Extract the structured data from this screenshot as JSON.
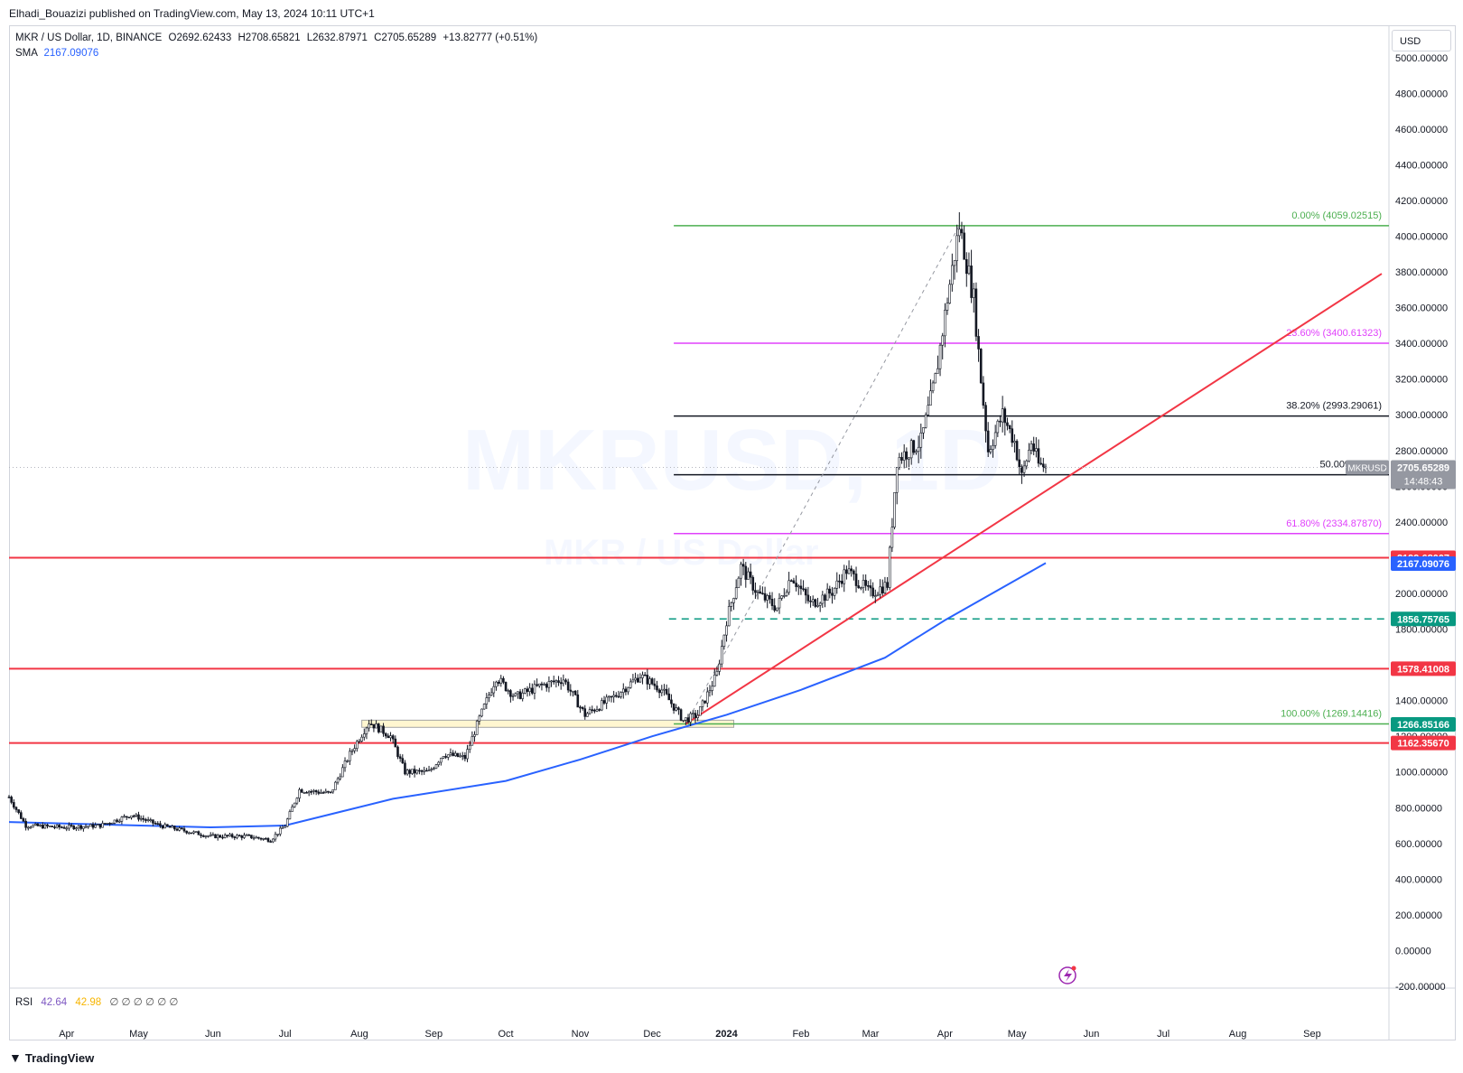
{
  "header": {
    "publisher_line": "Elhadi_Bouazizi published on TradingView.com, May 13, 2024 10:11 UTC+1"
  },
  "legend": {
    "symbol": "MKR / US Dollar, 1D, BINANCE",
    "open": "O2692.62433",
    "high": "H2708.65821",
    "low": "L2632.87971",
    "close": "C2705.65289",
    "change": "+13.82777 (+0.51%)",
    "sma_label": "SMA",
    "sma_value": "2167.09076"
  },
  "rsi": {
    "label": "RSI",
    "value1": "42.64",
    "value2": "42.98",
    "extra": "∅ ∅ ∅ ∅ ∅ ∅"
  },
  "currency_button": "USD",
  "watermark": {
    "ticker": "MKRUSD, 1D",
    "name": "MKR / US Dollar"
  },
  "footer": {
    "brand": "TradingView",
    "logo_icon": "tradingview-logo-icon"
  },
  "chart_data": {
    "type": "candlestick",
    "symbol": "MKRUSD",
    "ylim": [
      -200,
      5100
    ],
    "y_ticks": [
      "5000.00000",
      "4800.00000",
      "4600.00000",
      "4400.00000",
      "4200.00000",
      "4000.00000",
      "3800.00000",
      "3600.00000",
      "3400.00000",
      "3200.00000",
      "3000.00000",
      "2800.00000",
      "2600.00000",
      "2400.00000",
      "2200.00000",
      "2000.00000",
      "1800.00000",
      "1600.00000",
      "1400.00000",
      "1200.00000",
      "1000.00000",
      "800.00000",
      "600.00000",
      "400.00000",
      "200.00000",
      "0.00000",
      "-200.00000"
    ],
    "x_ticks": [
      "Apr",
      "May",
      "Jun",
      "Jul",
      "Aug",
      "Sep",
      "Oct",
      "Nov",
      "Dec",
      "2024",
      "Feb",
      "Mar",
      "Apr",
      "May",
      "Jun",
      "Jul",
      "Aug",
      "Sep"
    ],
    "x_range": [
      "2023-03-08",
      "2024-09-30"
    ],
    "price_path": [
      [
        "2023-03-08",
        860
      ],
      [
        "2023-03-15",
        700
      ],
      [
        "2023-03-31",
        690
      ],
      [
        "2023-04-15",
        700
      ],
      [
        "2023-04-28",
        760
      ],
      [
        "2023-05-10",
        700
      ],
      [
        "2023-05-31",
        640
      ],
      [
        "2023-06-15",
        640
      ],
      [
        "2023-06-25",
        620
      ],
      [
        "2023-07-01",
        700
      ],
      [
        "2023-07-07",
        900
      ],
      [
        "2023-07-20",
        880
      ],
      [
        "2023-07-28",
        1100
      ],
      [
        "2023-08-05",
        1280
      ],
      [
        "2023-08-14",
        1200
      ],
      [
        "2023-08-20",
        1000
      ],
      [
        "2023-08-30",
        1000
      ],
      [
        "2023-09-05",
        1100
      ],
      [
        "2023-09-14",
        1080
      ],
      [
        "2023-09-20",
        1300
      ],
      [
        "2023-09-27",
        1530
      ],
      [
        "2023-10-05",
        1420
      ],
      [
        "2023-10-15",
        1480
      ],
      [
        "2023-10-25",
        1520
      ],
      [
        "2023-11-03",
        1320
      ],
      [
        "2023-11-15",
        1420
      ],
      [
        "2023-11-26",
        1540
      ],
      [
        "2023-12-05",
        1460
      ],
      [
        "2023-12-14",
        1290
      ],
      [
        "2023-12-20",
        1320
      ],
      [
        "2023-12-28",
        1550
      ],
      [
        "2024-01-01",
        1850
      ],
      [
        "2024-01-07",
        2150
      ],
      [
        "2024-01-14",
        2000
      ],
      [
        "2024-01-22",
        1920
      ],
      [
        "2024-01-28",
        2100
      ],
      [
        "2024-02-05",
        1940
      ],
      [
        "2024-02-14",
        2010
      ],
      [
        "2024-02-20",
        2130
      ],
      [
        "2024-03-01",
        2000
      ],
      [
        "2024-03-08",
        2050
      ],
      [
        "2024-03-12",
        2750
      ],
      [
        "2024-03-22",
        2850
      ],
      [
        "2024-03-28",
        3200
      ],
      [
        "2024-04-02",
        3650
      ],
      [
        "2024-04-07",
        4059
      ],
      [
        "2024-04-13",
        3650
      ],
      [
        "2024-04-16",
        3200
      ],
      [
        "2024-04-19",
        2800
      ],
      [
        "2024-04-25",
        3000
      ],
      [
        "2024-04-30",
        2850
      ],
      [
        "2024-05-03",
        2650
      ],
      [
        "2024-05-07",
        2850
      ],
      [
        "2024-05-10",
        2720
      ],
      [
        "2024-05-13",
        2705
      ]
    ],
    "sma": {
      "name": "SMA",
      "value": 2167.09076,
      "points": [
        [
          "2023-03-08",
          720
        ],
        [
          "2023-05-31",
          690
        ],
        [
          "2023-07-01",
          700
        ],
        [
          "2023-08-15",
          850
        ],
        [
          "2023-10-01",
          950
        ],
        [
          "2023-11-01",
          1070
        ],
        [
          "2023-12-01",
          1200
        ],
        [
          "2024-01-01",
          1320
        ],
        [
          "2024-02-01",
          1460
        ],
        [
          "2024-03-07",
          1640
        ],
        [
          "2024-04-01",
          1850
        ],
        [
          "2024-05-13",
          2170
        ]
      ],
      "color": "#2962ff"
    },
    "fibonacci": {
      "from": [
        "2023-12-15",
        1269.14416
      ],
      "to": [
        "2024-04-07",
        4059.02515
      ],
      "levels": [
        {
          "label": "0.00% (4059.02515)",
          "value": 4059.02515,
          "color": "#4caf50"
        },
        {
          "label": "23.60% (3400.61323)",
          "value": 3400.61323,
          "color": "#e040fb"
        },
        {
          "label": "38.20% (2993.29061)",
          "value": 2993.29061,
          "color": "#131722"
        },
        {
          "label": "50.00% (2664",
          "value": 2664.08,
          "color": "#131722"
        },
        {
          "label": "61.80% (2334.87870)",
          "value": 2334.8787,
          "color": "#e040fb"
        },
        {
          "label": "100.00% (1269.14416)",
          "value": 1269.14416,
          "color": "#4caf50"
        }
      ]
    },
    "horizontal_lines": [
      {
        "value": 2199.68007,
        "color": "#f23645",
        "style": "solid"
      },
      {
        "value": 1578.41008,
        "color": "#f23645",
        "style": "solid"
      },
      {
        "value": 1162.3567,
        "color": "#f23645",
        "style": "solid"
      },
      {
        "value": 1856.75765,
        "color": "#089981",
        "style": "dashed",
        "start": "2023-12-08"
      }
    ],
    "trendline": {
      "from": [
        "2023-12-15",
        1269
      ],
      "to": [
        "2024-09-30",
        3790
      ],
      "color": "#f23645"
    },
    "price_labels": [
      {
        "text": "2705.65289",
        "value": 2705.65289,
        "color": "#9598a1",
        "countdown": "14:48:43",
        "tag": "MKRUSD"
      },
      {
        "text": "2199.68007",
        "value": 2199.68007,
        "color": "#f23645"
      },
      {
        "text": "2167.09076",
        "value": 2167.09076,
        "color": "#2962ff"
      },
      {
        "text": "1856.75765",
        "value": 1856.75765,
        "color": "#089981"
      },
      {
        "text": "1578.41008",
        "value": 1578.41008,
        "color": "#f23645"
      },
      {
        "text": "1266.85166",
        "value": 1266.85166,
        "color": "#089981"
      },
      {
        "text": "1162.35670",
        "value": 1162.3567,
        "color": "#f23645"
      }
    ],
    "range_box": {
      "from": "2023-08-02",
      "to": "2024-01-04",
      "low": 1250,
      "high": 1290
    }
  }
}
